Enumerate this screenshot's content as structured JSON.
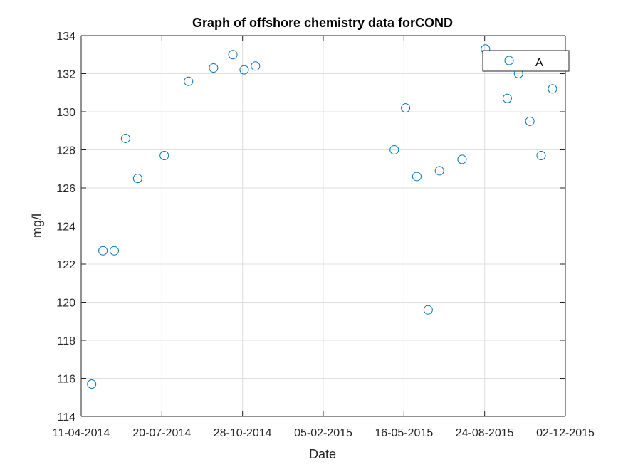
{
  "chart_data": {
    "type": "scatter",
    "title": "Graph of offshore chemistry data forCOND",
    "xlabel": "Date",
    "ylabel": "mg/l",
    "x_axis_type": "date",
    "xlim": [
      "2014-04-11",
      "2015-12-02"
    ],
    "ylim": [
      114,
      134
    ],
    "xticks": [
      "2014-04-11",
      "2014-07-20",
      "2014-10-28",
      "2015-02-05",
      "2015-05-16",
      "2015-08-24",
      "2015-12-02"
    ],
    "xtick_labels": [
      "11-04-2014",
      "20-07-2014",
      "28-10-2014",
      "05-02-2015",
      "16-05-2015",
      "24-08-2015",
      "02-12-2015"
    ],
    "yticks": [
      114,
      116,
      118,
      120,
      122,
      124,
      126,
      128,
      130,
      132,
      134
    ],
    "grid": true,
    "legend": {
      "placement": "top-right"
    },
    "marker_color": "#0072BD",
    "series": [
      {
        "name": "A",
        "marker": "circle",
        "points": [
          {
            "x": "2014-04-24",
            "y": 115.7
          },
          {
            "x": "2014-05-08",
            "y": 122.7
          },
          {
            "x": "2014-05-22",
            "y": 122.7
          },
          {
            "x": "2014-06-05",
            "y": 128.6
          },
          {
            "x": "2014-06-20",
            "y": 126.5
          },
          {
            "x": "2014-07-23",
            "y": 127.7
          },
          {
            "x": "2014-08-22",
            "y": 131.6
          },
          {
            "x": "2014-09-22",
            "y": 132.3
          },
          {
            "x": "2014-10-16",
            "y": 133.0
          },
          {
            "x": "2014-10-30",
            "y": 132.2
          },
          {
            "x": "2014-11-13",
            "y": 132.4
          },
          {
            "x": "2015-05-04",
            "y": 128.0
          },
          {
            "x": "2015-05-18",
            "y": 130.2
          },
          {
            "x": "2015-06-01",
            "y": 126.6
          },
          {
            "x": "2015-06-15",
            "y": 119.6
          },
          {
            "x": "2015-06-29",
            "y": 126.9
          },
          {
            "x": "2015-07-27",
            "y": 127.5
          },
          {
            "x": "2015-08-25",
            "y": 133.3
          },
          {
            "x": "2015-09-21",
            "y": 130.7
          },
          {
            "x": "2015-10-05",
            "y": 132.0
          },
          {
            "x": "2015-10-19",
            "y": 129.5
          },
          {
            "x": "2015-11-02",
            "y": 127.7
          },
          {
            "x": "2015-11-16",
            "y": 131.2
          }
        ]
      }
    ]
  }
}
